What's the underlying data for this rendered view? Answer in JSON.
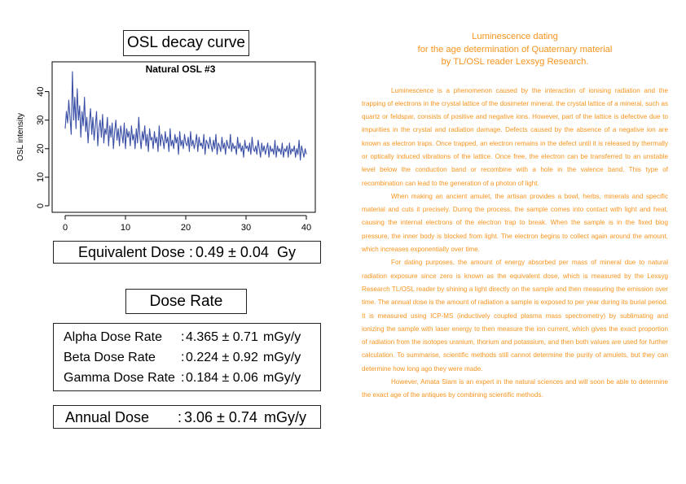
{
  "left": {
    "osl_title": "OSL decay curve",
    "equivalent_dose": {
      "label": "Equivalent Dose",
      "sep": ":",
      "value": "0.49 ± 0.04",
      "unit": "Gy"
    },
    "dose_rate_title": "Dose Rate",
    "rates": [
      {
        "label": "Alpha Dose Rate",
        "sep": ":",
        "value": "4.365 ± 0.71",
        "unit": "mGy/y"
      },
      {
        "label": "Beta Dose Rate",
        "sep": ":",
        "value": "0.224 ± 0.92",
        "unit": "mGy/y"
      },
      {
        "label": "Gamma Dose Rate",
        "sep": ":",
        "value": "0.184 ± 0.06",
        "unit": "mGy/y"
      }
    ],
    "annual_dose": {
      "label": "Annual Dose",
      "sep": ":",
      "value": "3.06 ± 0.74",
      "unit": "mGy/y"
    }
  },
  "right": {
    "heading": [
      "Luminescence dating",
      "for the age determination of Quaternary material",
      "by TL/OSL reader Lexsyg Research."
    ],
    "paragraphs": [
      "Luminescence is a phenomenon caused by the interaction of ionising radiation and the trapping of electrons in the crystal lattice of the dosimeter mineral. the crystal lattice of a mineral, such as quartz or feldspar, consists of positive and negative ions. However, part of the lattice is defective due to impurities in the crystal and radiation damage. Defects caused by the absence of a negative ion are known as electron traps. Once trapped, an electron remains in the defect until it is released by thermally or optically induced vibrations of the lattice. Once free, the electron can be transferred to an unstable level below the conduction band or recombine with a hole in the valence band. This type of recombination can lead to the generation of a photon of light.",
      "When making an ancient amulet, the artisan provides a bowl, herbs, minerals and specific material and cuts it precisely. During the process, the sample comes into contact with light and heat, causing the internal electrons of the electron trap to break. When the sample is in the fixed blog pressure, the inner body is blocked from light. The electron begins to collect again around the amount, which increases exponentially over time.",
      "For dating purposes, the amount of energy absorbed per mass of mineral due to natural radiation exposure since zero is known as the equivalent dose, which is measured by the Lexsyg Research TL/OSL reader by shining a light directly on the sample and then measuring the emission over time. The annual dose is the amount of radiation a sample is exposed to per year during its burial period. It is measured using ICP-MS (inductively coupled plasma mass spectrometry) by sublimating and ionizing the sample with laser energy to then measure the ion current, which gives the exact proportion of radiation from the isotopes uranium, thorium and potassium, and then both values are used for further calculation. To summarise, scientific methods still cannot determine the purity of amulets, but they can determine how long ago they were made.",
      "However, Amata Siam is an expert in the natural sciences and will soon be able to determine the exact age of the antiques by combining scientific methods."
    ]
  },
  "chart_data": {
    "type": "line",
    "title": "Natural OSL #3",
    "xlabel": "",
    "ylabel": "OSL intensity",
    "xlim": [
      0,
      40
    ],
    "ylim": [
      0,
      47
    ],
    "xticks": [
      0,
      10,
      20,
      30,
      40
    ],
    "yticks": [
      0,
      10,
      20,
      30,
      40
    ],
    "line_color": "#3a4fa5",
    "grid": false,
    "series": [
      {
        "x": [
          0.0,
          0.2,
          0.4,
          0.6,
          0.8,
          1.0,
          1.2,
          1.4,
          1.6,
          1.8,
          2.0,
          2.2,
          2.4,
          2.6,
          2.8,
          3.0,
          3.2,
          3.4,
          3.6,
          3.8,
          4.0,
          4.2,
          4.4,
          4.6,
          4.8,
          5.0,
          5.2,
          5.4,
          5.6,
          5.8,
          6.0,
          6.2,
          6.4,
          6.6,
          6.8,
          7.0,
          7.2,
          7.4,
          7.6,
          7.8,
          8.0,
          8.2,
          8.4,
          8.6,
          8.8,
          9.0,
          9.2,
          9.4,
          9.6,
          9.8,
          10.0,
          10.2,
          10.4,
          10.6,
          10.8,
          11.0,
          11.2,
          11.4,
          11.6,
          11.8,
          12.0,
          12.2,
          12.4,
          12.6,
          12.8,
          13.0,
          13.2,
          13.4,
          13.6,
          13.8,
          14.0,
          14.2,
          14.4,
          14.6,
          14.8,
          15.0,
          15.2,
          15.4,
          15.6,
          15.8,
          16.0,
          16.2,
          16.4,
          16.6,
          16.8,
          17.0,
          17.2,
          17.4,
          17.6,
          17.8,
          18.0,
          18.2,
          18.4,
          18.6,
          18.8,
          19.0,
          19.2,
          19.4,
          19.6,
          19.8,
          20.0,
          20.2,
          20.4,
          20.6,
          20.8,
          21.0,
          21.2,
          21.4,
          21.6,
          21.8,
          22.0,
          22.2,
          22.4,
          22.6,
          22.8,
          23.0,
          23.2,
          23.4,
          23.6,
          23.8,
          24.0,
          24.2,
          24.4,
          24.6,
          24.8,
          25.0,
          25.2,
          25.4,
          25.6,
          25.8,
          26.0,
          26.2,
          26.4,
          26.6,
          26.8,
          27.0,
          27.2,
          27.4,
          27.6,
          27.8,
          28.0,
          28.2,
          28.4,
          28.6,
          28.8,
          29.0,
          29.2,
          29.4,
          29.6,
          29.8,
          30.0,
          30.2,
          30.4,
          30.6,
          30.8,
          31.0,
          31.2,
          31.4,
          31.6,
          31.8,
          32.0,
          32.2,
          32.4,
          32.6,
          32.8,
          33.0,
          33.2,
          33.4,
          33.6,
          33.8,
          34.0,
          34.2,
          34.4,
          34.6,
          34.8,
          35.0,
          35.2,
          35.4,
          35.6,
          35.8,
          36.0,
          36.2,
          36.4,
          36.6,
          36.8,
          37.0,
          37.2,
          37.4,
          37.6,
          37.8,
          38.0,
          38.2,
          38.4,
          38.6,
          38.8,
          39.0,
          39.2,
          39.4,
          39.6,
          39.8,
          40.0
        ],
        "values": [
          27,
          33,
          29,
          37,
          31,
          25,
          47,
          30,
          38,
          27,
          41,
          30,
          35,
          24,
          33,
          28,
          38,
          26,
          31,
          22,
          29,
          34,
          25,
          31,
          23,
          28,
          33,
          21,
          27,
          30,
          24,
          32,
          22,
          27,
          25,
          31,
          21,
          28,
          24,
          29,
          20,
          26,
          30,
          23,
          27,
          21,
          28,
          25,
          22,
          29,
          20,
          27,
          24,
          26,
          21,
          28,
          23,
          25,
          20,
          27,
          22,
          31,
          24,
          20,
          26,
          23,
          28,
          21,
          25,
          19,
          27,
          23,
          24,
          20,
          26,
          22,
          24,
          19,
          28,
          21,
          25,
          23,
          20,
          26,
          22,
          24,
          19,
          27,
          21,
          23,
          20,
          25,
          22,
          24,
          18,
          26,
          21,
          23,
          20,
          25,
          22,
          21,
          24,
          19,
          26,
          21,
          23,
          20,
          22,
          25,
          19,
          24,
          21,
          22,
          20,
          25,
          18,
          23,
          22,
          20,
          24,
          21,
          19,
          23,
          20,
          25,
          18,
          22,
          21,
          19,
          24,
          20,
          22,
          18,
          23,
          21,
          20,
          25,
          19,
          22,
          20,
          21,
          18,
          24,
          20,
          22,
          19,
          21,
          17,
          23,
          20,
          21,
          19,
          22,
          18,
          24,
          20,
          19,
          21,
          18,
          23,
          20,
          17,
          22,
          19,
          21,
          18,
          20,
          22,
          17,
          21,
          19,
          20,
          18,
          23,
          17,
          21,
          19,
          20,
          18,
          22,
          17,
          20,
          19,
          21,
          17,
          22,
          18,
          20,
          19,
          21,
          17,
          20,
          18,
          23,
          16,
          21,
          19,
          17,
          20,
          18
        ]
      }
    ]
  }
}
